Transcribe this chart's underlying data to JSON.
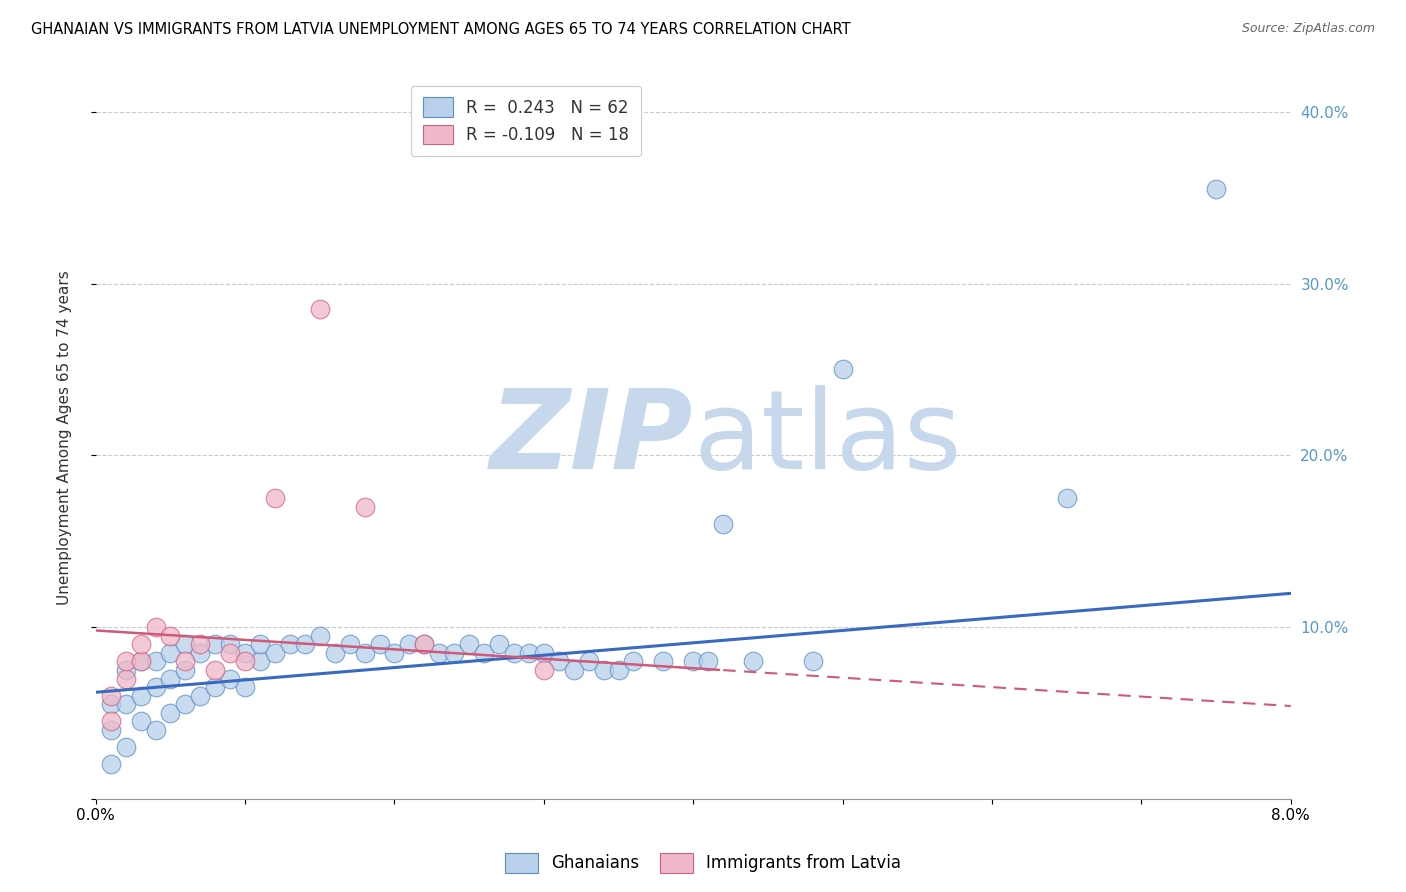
{
  "title": "GHANAIAN VS IMMIGRANTS FROM LATVIA UNEMPLOYMENT AMONG AGES 65 TO 74 YEARS CORRELATION CHART",
  "source": "Source: ZipAtlas.com",
  "ylabel": "Unemployment Among Ages 65 to 74 years",
  "xlim": [
    0.0,
    0.08
  ],
  "ylim": [
    0.0,
    0.42
  ],
  "legend_blue_r": "R =  0.243",
  "legend_blue_n": "N = 62",
  "legend_pink_r": "R = -0.109",
  "legend_pink_n": "N = 18",
  "blue_fill": "#b8d0ea",
  "blue_edge": "#5b8ec4",
  "pink_fill": "#f0b8c8",
  "pink_edge": "#d06080",
  "blue_line_color": "#3a6abf",
  "pink_line_color": "#d05878",
  "watermark_zip_color": "#c8d8ec",
  "watermark_atlas_color": "#c8d8ec",
  "right_tick_color": "#5599cc",
  "blue_trendline_intercept": 0.062,
  "blue_trendline_slope": 0.72,
  "pink_trendline_intercept": 0.098,
  "pink_trendline_slope": -0.55,
  "ghanaians_x": [
    0.001,
    0.001,
    0.001,
    0.002,
    0.002,
    0.002,
    0.003,
    0.003,
    0.003,
    0.004,
    0.004,
    0.004,
    0.005,
    0.005,
    0.005,
    0.006,
    0.006,
    0.006,
    0.007,
    0.007,
    0.008,
    0.008,
    0.009,
    0.009,
    0.01,
    0.01,
    0.011,
    0.011,
    0.012,
    0.013,
    0.014,
    0.015,
    0.016,
    0.017,
    0.018,
    0.019,
    0.02,
    0.021,
    0.022,
    0.023,
    0.024,
    0.025,
    0.026,
    0.027,
    0.028,
    0.029,
    0.03,
    0.031,
    0.032,
    0.033,
    0.034,
    0.035,
    0.036,
    0.038,
    0.04,
    0.041,
    0.042,
    0.044,
    0.048,
    0.05,
    0.065,
    0.075
  ],
  "ghanaians_y": [
    0.02,
    0.04,
    0.055,
    0.03,
    0.055,
    0.075,
    0.045,
    0.06,
    0.08,
    0.04,
    0.065,
    0.08,
    0.05,
    0.07,
    0.085,
    0.055,
    0.075,
    0.09,
    0.06,
    0.085,
    0.065,
    0.09,
    0.07,
    0.09,
    0.065,
    0.085,
    0.08,
    0.09,
    0.085,
    0.09,
    0.09,
    0.095,
    0.085,
    0.09,
    0.085,
    0.09,
    0.085,
    0.09,
    0.09,
    0.085,
    0.085,
    0.09,
    0.085,
    0.09,
    0.085,
    0.085,
    0.085,
    0.08,
    0.075,
    0.08,
    0.075,
    0.075,
    0.08,
    0.08,
    0.08,
    0.08,
    0.16,
    0.08,
    0.08,
    0.25,
    0.175,
    0.355
  ],
  "latvia_x": [
    0.001,
    0.001,
    0.002,
    0.002,
    0.003,
    0.003,
    0.004,
    0.005,
    0.006,
    0.007,
    0.008,
    0.009,
    0.01,
    0.012,
    0.015,
    0.018,
    0.022,
    0.03
  ],
  "latvia_y": [
    0.045,
    0.06,
    0.07,
    0.08,
    0.08,
    0.09,
    0.1,
    0.095,
    0.08,
    0.09,
    0.075,
    0.085,
    0.08,
    0.175,
    0.285,
    0.17,
    0.09,
    0.075
  ]
}
